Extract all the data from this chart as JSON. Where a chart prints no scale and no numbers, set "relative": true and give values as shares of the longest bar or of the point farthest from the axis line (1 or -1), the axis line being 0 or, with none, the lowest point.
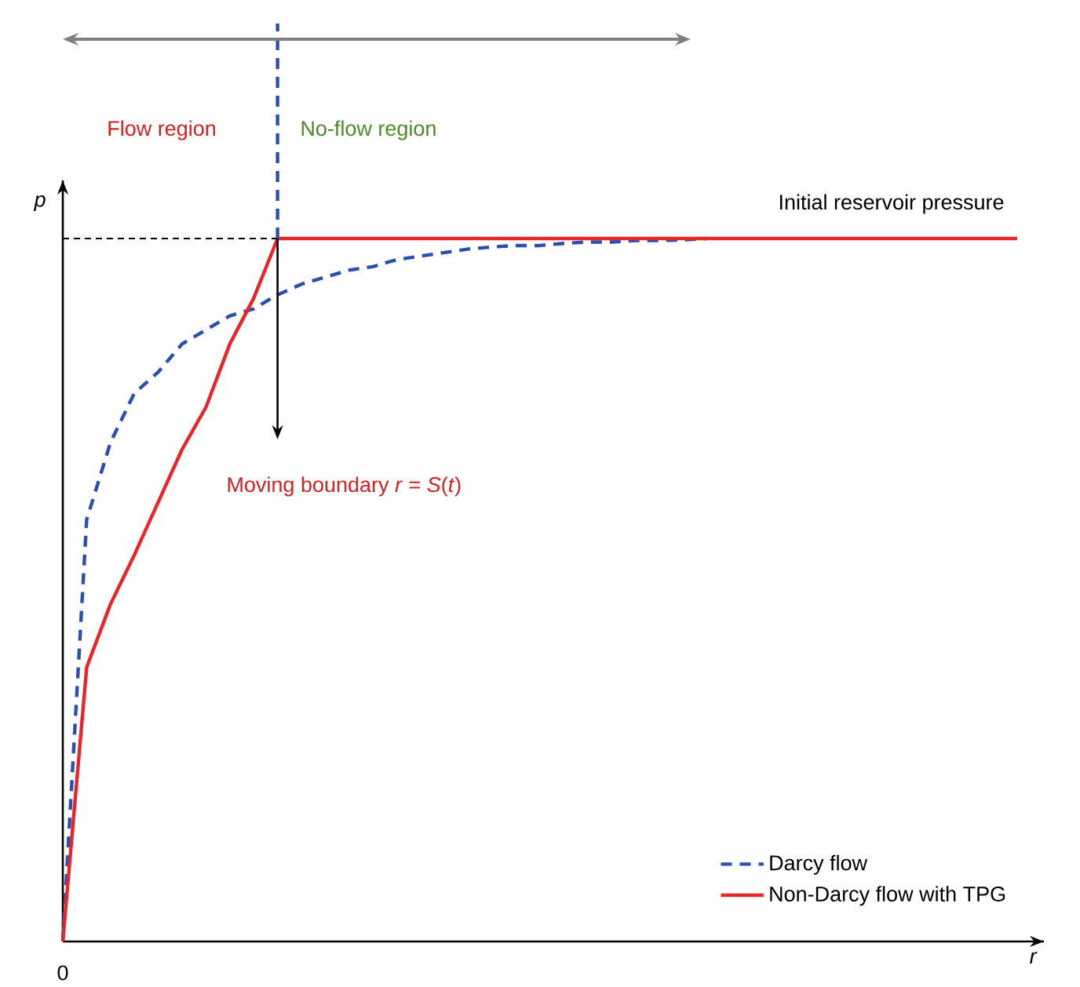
{
  "chart_data": {
    "type": "line",
    "relative": true,
    "xlabel": "r",
    "ylabel": "p",
    "legend": "bottom right",
    "categories": [
      null,
      null,
      null,
      null,
      null,
      null,
      null,
      null,
      null,
      null,
      null,
      null,
      null,
      null,
      null,
      null,
      null,
      null,
      null,
      null,
      null,
      null,
      null,
      null,
      null,
      null,
      null,
      null,
      null,
      null,
      null,
      null,
      null,
      null,
      null,
      null,
      null,
      null,
      null,
      null,
      null
    ],
    "series": [
      {
        "name": "Darcy flow",
        "color": "#2a4fb0",
        "line_style": "dashed",
        "values": [
          0,
          0.6,
          0.71,
          0.78,
          0.81,
          0.85,
          0.87,
          0.89,
          0.9,
          0.92,
          0.935,
          0.945,
          0.955,
          0.96,
          0.97,
          0.975,
          0.98,
          0.985,
          0.988,
          0.99,
          0.99,
          0.993,
          0.995,
          0.995,
          0.997,
          0.997,
          0.998,
          1,
          null,
          null,
          null,
          null,
          null,
          null,
          null,
          null,
          null,
          null,
          null,
          null,
          null
        ]
      },
      {
        "name": "Non-Darcy flow with TPG",
        "color": "#e8262a",
        "line_style": "solid",
        "values": [
          0,
          0.39,
          0.48,
          0.55,
          0.625,
          0.7,
          0.76,
          0.85,
          0.915,
          1,
          1,
          1,
          1,
          1,
          1,
          1,
          1,
          1,
          1,
          1,
          1,
          1,
          1,
          1,
          1,
          1,
          1,
          1,
          1,
          1,
          1,
          1,
          1,
          1,
          1,
          1,
          1,
          1,
          1,
          1,
          1
        ]
      }
    ],
    "annotations": [
      "Flow region",
      "No-flow region",
      "Initial reservoir pressure",
      "Moving boundary *r* = *S*(*t*)",
      "0"
    ]
  }
}
